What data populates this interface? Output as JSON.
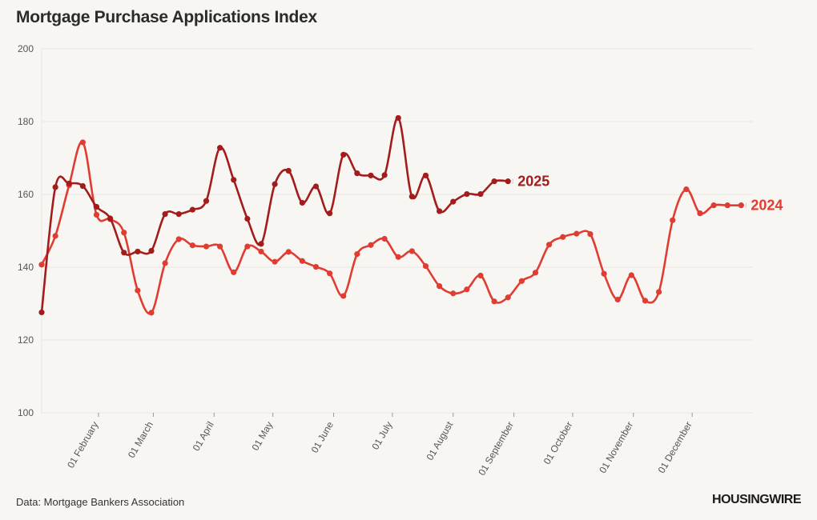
{
  "title": "Mortgage Purchase Applications Index",
  "source": "Data: Mortgage Bankers Association",
  "logo": "HOUSINGWIRE",
  "colors": {
    "s2025": "#a31c1c",
    "s2024": "#e03c31",
    "grid": "#e8e5e0",
    "background": "#f8f6f3"
  },
  "chart_data": {
    "type": "line",
    "title": "Mortgage Purchase Applications Index",
    "xlabel": "",
    "ylabel": "",
    "ylim": [
      100,
      200
    ],
    "yticks": [
      100,
      120,
      140,
      160,
      180,
      200
    ],
    "xlim": [
      3,
      366
    ],
    "xticks": [
      {
        "label": "01 February",
        "day": 32
      },
      {
        "label": "01 March",
        "day": 60
      },
      {
        "label": "01 April",
        "day": 91
      },
      {
        "label": "01 May",
        "day": 121
      },
      {
        "label": "01 June",
        "day": 152
      },
      {
        "label": "01 July",
        "day": 182
      },
      {
        "label": "01 August",
        "day": 213
      },
      {
        "label": "01 September",
        "day": 244
      },
      {
        "label": "01 October",
        "day": 274
      },
      {
        "label": "01 November",
        "day": 305
      },
      {
        "label": "01 December",
        "day": 335
      }
    ],
    "grid": true,
    "series": [
      {
        "name": "2025",
        "color": "#a31c1c",
        "x": [
          3,
          10,
          17,
          24,
          31,
          38,
          45,
          52,
          59,
          66,
          73,
          80,
          87,
          94,
          101,
          108,
          115,
          122,
          129,
          136,
          143,
          150,
          157,
          164,
          171,
          178,
          185,
          192,
          199,
          206,
          213,
          220,
          227,
          234,
          241
        ],
        "y": [
          127.6,
          162.0,
          163.0,
          162.3,
          156.6,
          153.4,
          144.0,
          144.3,
          144.5,
          154.6,
          154.6,
          155.8,
          158.2,
          172.8,
          164.0,
          153.3,
          146.4,
          162.8,
          166.5,
          157.7,
          162.2,
          154.8,
          170.9,
          165.8,
          165.2,
          165.3,
          181.0,
          159.4,
          165.2,
          155.4,
          158.0,
          160.1,
          160.1,
          163.6,
          163.6
        ]
      },
      {
        "name": "2024",
        "color": "#e03c31",
        "x": [
          3,
          10,
          17,
          24,
          31,
          38,
          45,
          52,
          59,
          66,
          73,
          80,
          87,
          94,
          101,
          108,
          115,
          122,
          129,
          136,
          143,
          150,
          157,
          164,
          171,
          178,
          185,
          192,
          199,
          206,
          213,
          220,
          227,
          234,
          241,
          248,
          255,
          262,
          269,
          276,
          283,
          290,
          297,
          304,
          311,
          318,
          325,
          332,
          339,
          346,
          353,
          360
        ],
        "y": [
          140.7,
          148.6,
          162.5,
          174.3,
          154.4,
          153.2,
          149.5,
          133.6,
          127.5,
          141.1,
          147.7,
          146.0,
          145.7,
          145.7,
          138.6,
          145.7,
          144.3,
          141.5,
          144.2,
          141.7,
          140.1,
          138.3,
          132.1,
          143.6,
          146.1,
          147.8,
          142.8,
          144.4,
          140.3,
          134.8,
          132.8,
          133.9,
          137.7,
          130.6,
          131.7,
          136.2,
          138.5,
          146.2,
          148.3,
          149.2,
          149.1,
          138.2,
          131.1,
          137.8,
          130.8,
          133.2,
          152.9,
          161.4,
          154.8,
          157.0,
          157.0,
          157.0
        ]
      }
    ],
    "annotations": [
      "2025",
      "2024"
    ]
  }
}
